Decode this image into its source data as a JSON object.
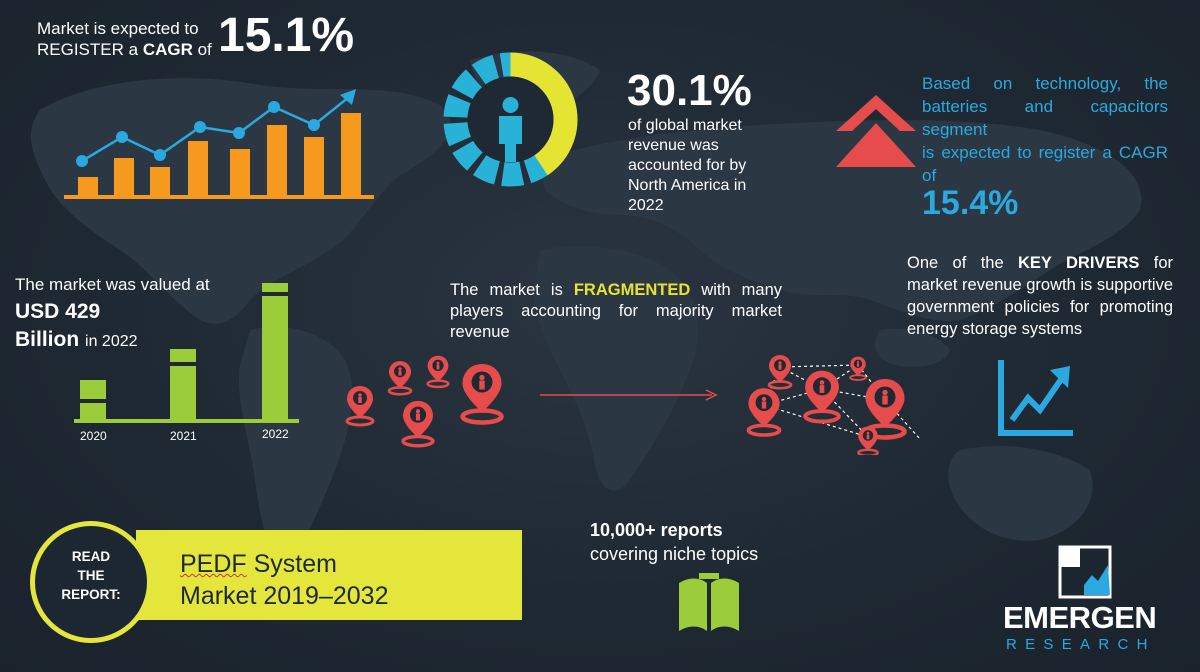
{
  "cagr": {
    "line1": "Market is expected to",
    "line2_pre": "REGISTER a ",
    "line2_bold": "CAGR",
    "line2_post": " of",
    "value": "15.1%"
  },
  "north_america": {
    "value": "30.1%",
    "text": "of global market revenue was accounted for by North America in 2022",
    "share_fraction": 0.301
  },
  "technology": {
    "text_line1": "Based on technology, the batteries and capacitors segment",
    "text_line2": "is expected to register a CAGR of",
    "value": "15.4%"
  },
  "drivers": {
    "pre": "One of the ",
    "bold": "KEY DRIVERS",
    "post": " for market revenue growth is supportive government policies for promoting energy storage systems"
  },
  "valuation": {
    "text": "The market was valued at",
    "value_line1": "USD 429",
    "value_line2": "Billion",
    "value_year": "in 2022",
    "years": [
      "2020",
      "2021",
      "2022"
    ]
  },
  "fragmented": {
    "pre": "The market is ",
    "highlight": "FRAGMENTED",
    "post": " with many players accounting for majority market revenue"
  },
  "reports": {
    "text_line1": "10,000+ reports",
    "text_line2": "covering niche topics"
  },
  "banner": {
    "read_line1": "READ",
    "read_line2": "THE",
    "read_line3": "REPORT:",
    "title_line1_pre": "PEDF",
    "title_line1_post": " System",
    "title_line2": "Market 2019–2032"
  },
  "logo": {
    "word": "EMERGEN",
    "sub": "RESEARCH"
  },
  "colors": {
    "background": "#1d2732",
    "map": "#2c3744",
    "yellow": "#e4e63c",
    "blue": "#29a9e0",
    "orange": "#f59a1e",
    "red": "#e74c4c",
    "green": "#9bcc3a"
  },
  "icons": [
    "trend-bar-chart-icon",
    "donut-person-icon",
    "double-chevron-up-icon",
    "growth-chart-icon",
    "map-pin-icon",
    "arrow-right-icon",
    "open-book-icon",
    "logo-mark-icon"
  ]
}
